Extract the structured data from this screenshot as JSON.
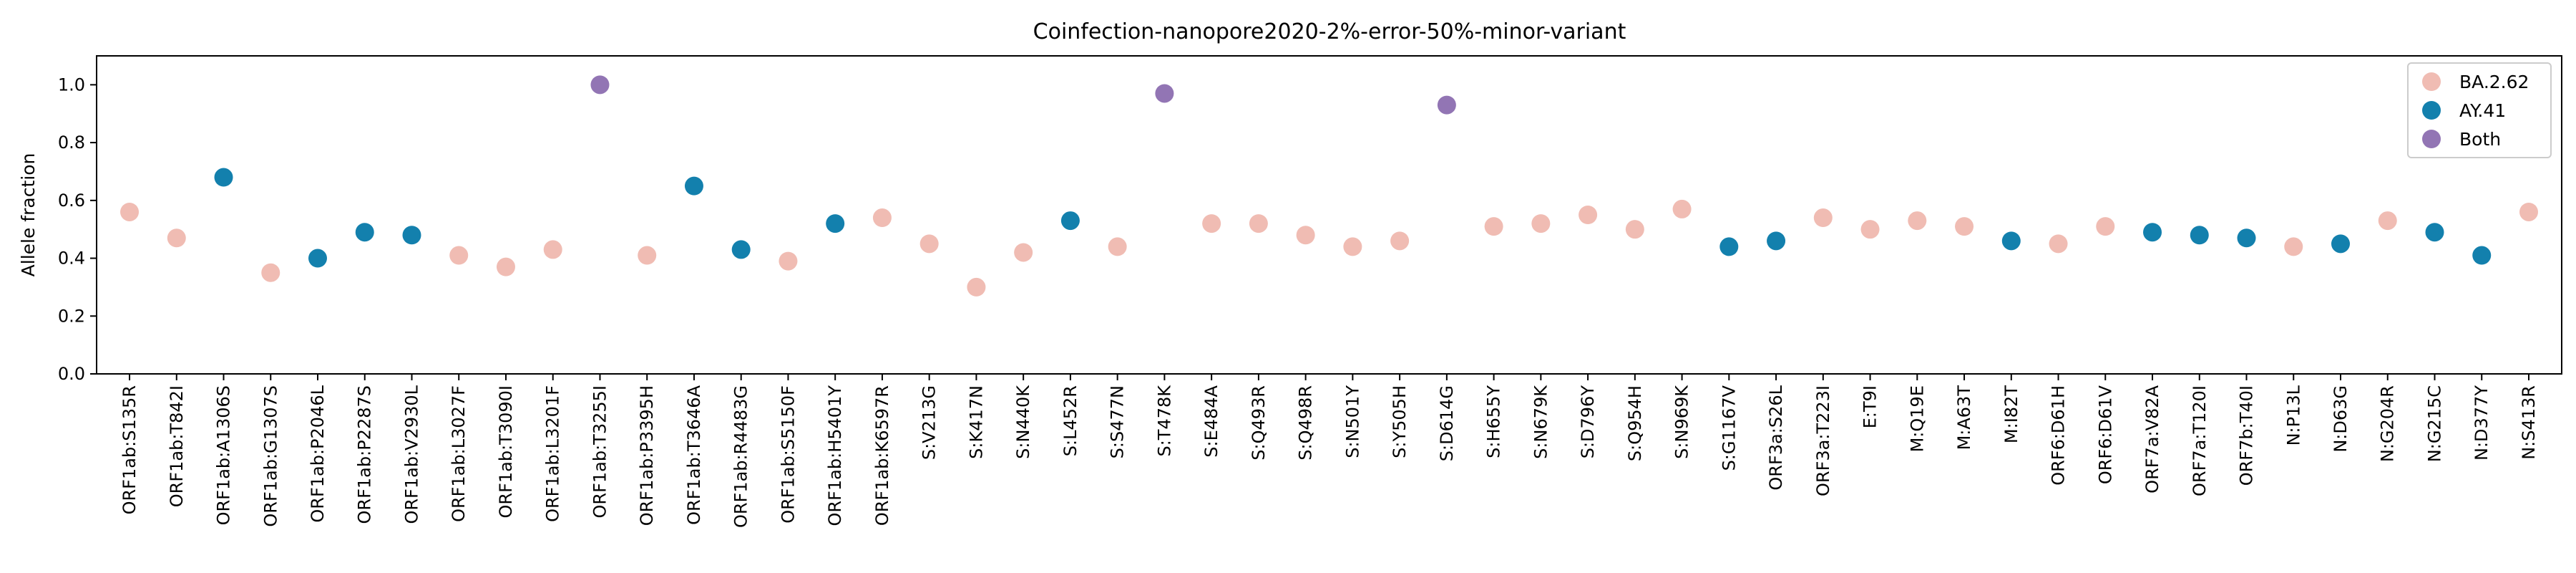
{
  "chart_data": {
    "type": "scatter",
    "title": "Coinfection-nanopore2020-2%-error-50%-minor-variant",
    "xlabel": "",
    "ylabel": "Allele fraction",
    "ylim": [
      0.0,
      1.1
    ],
    "yticks": [
      "0.0",
      "0.2",
      "0.4",
      "0.6",
      "0.8",
      "1.0"
    ],
    "grid": false,
    "legend_position": "top-right",
    "colors": {
      "BA.2.62": "#f0bcb3",
      "AY.41": "#1380ad",
      "Both": "#9275b4"
    },
    "legend": [
      "BA.2.62",
      "AY.41",
      "Both"
    ],
    "categories": [
      "ORF1ab:S135R",
      "ORF1ab:T842I",
      "ORF1ab:A1306S",
      "ORF1ab:G1307S",
      "ORF1ab:P2046L",
      "ORF1ab:P2287S",
      "ORF1ab:V2930L",
      "ORF1ab:L3027F",
      "ORF1ab:T3090I",
      "ORF1ab:L3201F",
      "ORF1ab:T3255I",
      "ORF1ab:P3395H",
      "ORF1ab:T3646A",
      "ORF1ab:R4483G",
      "ORF1ab:S5150F",
      "ORF1ab:H5401Y",
      "ORF1ab:K6597R",
      "S:V213G",
      "S:K417N",
      "S:N440K",
      "S:L452R",
      "S:S477N",
      "S:T478K",
      "S:E484A",
      "S:Q493R",
      "S:Q498R",
      "S:N501Y",
      "S:Y505H",
      "S:D614G",
      "S:H655Y",
      "S:N679K",
      "S:D796Y",
      "S:Q954H",
      "S:N969K",
      "S:G1167V",
      "ORF3a:S26L",
      "ORF3a:T223I",
      "E:T9I",
      "M:Q19E",
      "M:A63T",
      "M:I82T",
      "ORF6:D61H",
      "ORF6:D61V",
      "ORF7a:V82A",
      "ORF7a:T120I",
      "ORF7b:T40I",
      "N:P13L",
      "N:D63G",
      "N:G204R",
      "N:G215C",
      "N:D377Y",
      "N:S413R"
    ],
    "values": [
      0.56,
      0.47,
      0.68,
      0.35,
      0.4,
      0.49,
      0.48,
      0.41,
      0.37,
      0.43,
      1.0,
      0.41,
      0.65,
      0.43,
      0.39,
      0.52,
      0.54,
      0.45,
      0.3,
      0.42,
      0.53,
      0.44,
      0.97,
      0.52,
      0.52,
      0.48,
      0.44,
      0.46,
      0.93,
      0.51,
      0.52,
      0.55,
      0.5,
      0.57,
      0.44,
      0.46,
      0.54,
      0.5,
      0.53,
      0.51,
      0.46,
      0.45,
      0.51,
      0.49,
      0.48,
      0.47,
      0.44,
      0.45,
      0.53,
      0.49,
      0.41,
      0.56
    ],
    "groups": [
      "BA.2.62",
      "BA.2.62",
      "AY.41",
      "BA.2.62",
      "AY.41",
      "AY.41",
      "AY.41",
      "BA.2.62",
      "BA.2.62",
      "BA.2.62",
      "Both",
      "BA.2.62",
      "AY.41",
      "AY.41",
      "BA.2.62",
      "AY.41",
      "BA.2.62",
      "BA.2.62",
      "BA.2.62",
      "BA.2.62",
      "AY.41",
      "BA.2.62",
      "Both",
      "BA.2.62",
      "BA.2.62",
      "BA.2.62",
      "BA.2.62",
      "BA.2.62",
      "Both",
      "BA.2.62",
      "BA.2.62",
      "BA.2.62",
      "BA.2.62",
      "BA.2.62",
      "AY.41",
      "AY.41",
      "BA.2.62",
      "BA.2.62",
      "BA.2.62",
      "BA.2.62",
      "AY.41",
      "BA.2.62",
      "BA.2.62",
      "AY.41",
      "AY.41",
      "AY.41",
      "BA.2.62",
      "AY.41",
      "BA.2.62",
      "AY.41",
      "AY.41",
      "BA.2.62"
    ]
  }
}
